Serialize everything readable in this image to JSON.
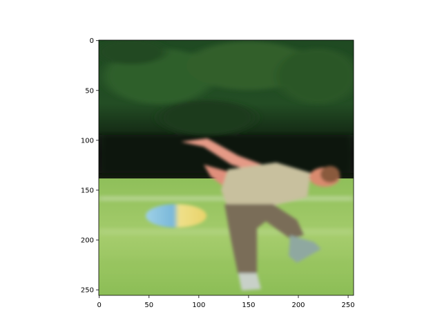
{
  "image": {
    "description_icon": "photo-icon",
    "subject": "person-throwing-frisbee-on-grass",
    "colors": {
      "trees_dark": "#0b1a0c",
      "trees_mid": "#2f5a2c",
      "grass_light": "#a9cf6f",
      "grass_mid": "#7fb24e",
      "shirt": "#c9c0a0",
      "pants": "#7c6e5a",
      "skin": "#e79a86",
      "hair": "#8a5a3e",
      "frisbee_yellow": "#f0df80",
      "frisbee_blue": "#8fc8e0"
    }
  },
  "axes": {
    "x": {
      "min": 0,
      "max": 255,
      "ticks": [
        0,
        50,
        100,
        150,
        200,
        250
      ],
      "tick_labels": [
        "0",
        "50",
        "100",
        "150",
        "200",
        "250"
      ]
    },
    "y": {
      "min": 0,
      "max": 255,
      "inverted": true,
      "ticks": [
        0,
        50,
        100,
        150,
        200,
        250
      ],
      "tick_labels": [
        "0",
        "50",
        "100",
        "150",
        "200",
        "250"
      ]
    }
  }
}
